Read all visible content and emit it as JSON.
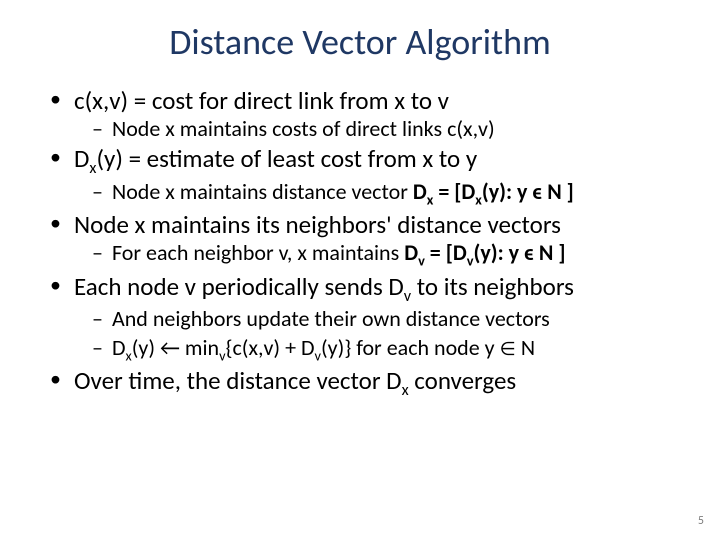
{
  "title": "Distance Vector Algorithm",
  "bullets": {
    "b1": "c(x,v) = cost for direct link from x to v",
    "b1s1_pre": "Node x maintains costs of direct links ",
    "b1s1_eq": "c(x,v)",
    "b2_pre": "D",
    "b2_sub": "x",
    "b2_post": "(y) = estimate of least cost from x to y",
    "b2s1_pre": "Node x maintains distance vector ",
    "b2s1_dx": "D",
    "b2s1_dxsub": "x",
    "b2s1_mid": " = [D",
    "b2s1_dxsub2": "x",
    "b2s1_post": "(y): y ϵ N ]",
    "b3": "Node x maintains its neighbors' distance vectors",
    "b3s1_pre": "For each neighbor v, x maintains ",
    "b3s1_dv": "D",
    "b3s1_dvsub": "v",
    "b3s1_mid": " = [D",
    "b3s1_dvsub2": "v",
    "b3s1_post": "(y): y ϵ N ]",
    "b4_pre": "Each node v periodically sends D",
    "b4_sub": "v",
    "b4_post": " to its neighbors",
    "b4s1": "And neighbors update their own distance vectors",
    "b4s2_pre": "D",
    "b4s2_sub1": "x",
    "b4s2_mid1": "(y) ← min",
    "b4s2_sub2": "v",
    "b4s2_mid2": "{c(x,v) + D",
    "b4s2_sub3": "v",
    "b4s2_post": "(y)}    for each node y ",
    "b4s2_in": "∈",
    "b4s2_n": " N",
    "b5_pre": "Over time, the distance vector D",
    "b5_sub": "x",
    "b5_post": " converges"
  },
  "page_number": "5",
  "colors": {
    "title": "#1f3864",
    "text": "#000000",
    "pagenum": "#808080",
    "background": "#ffffff"
  },
  "typography": {
    "title_fontsize": 36,
    "bullet_fontsize": 25,
    "subbullet_fontsize": 22
  }
}
